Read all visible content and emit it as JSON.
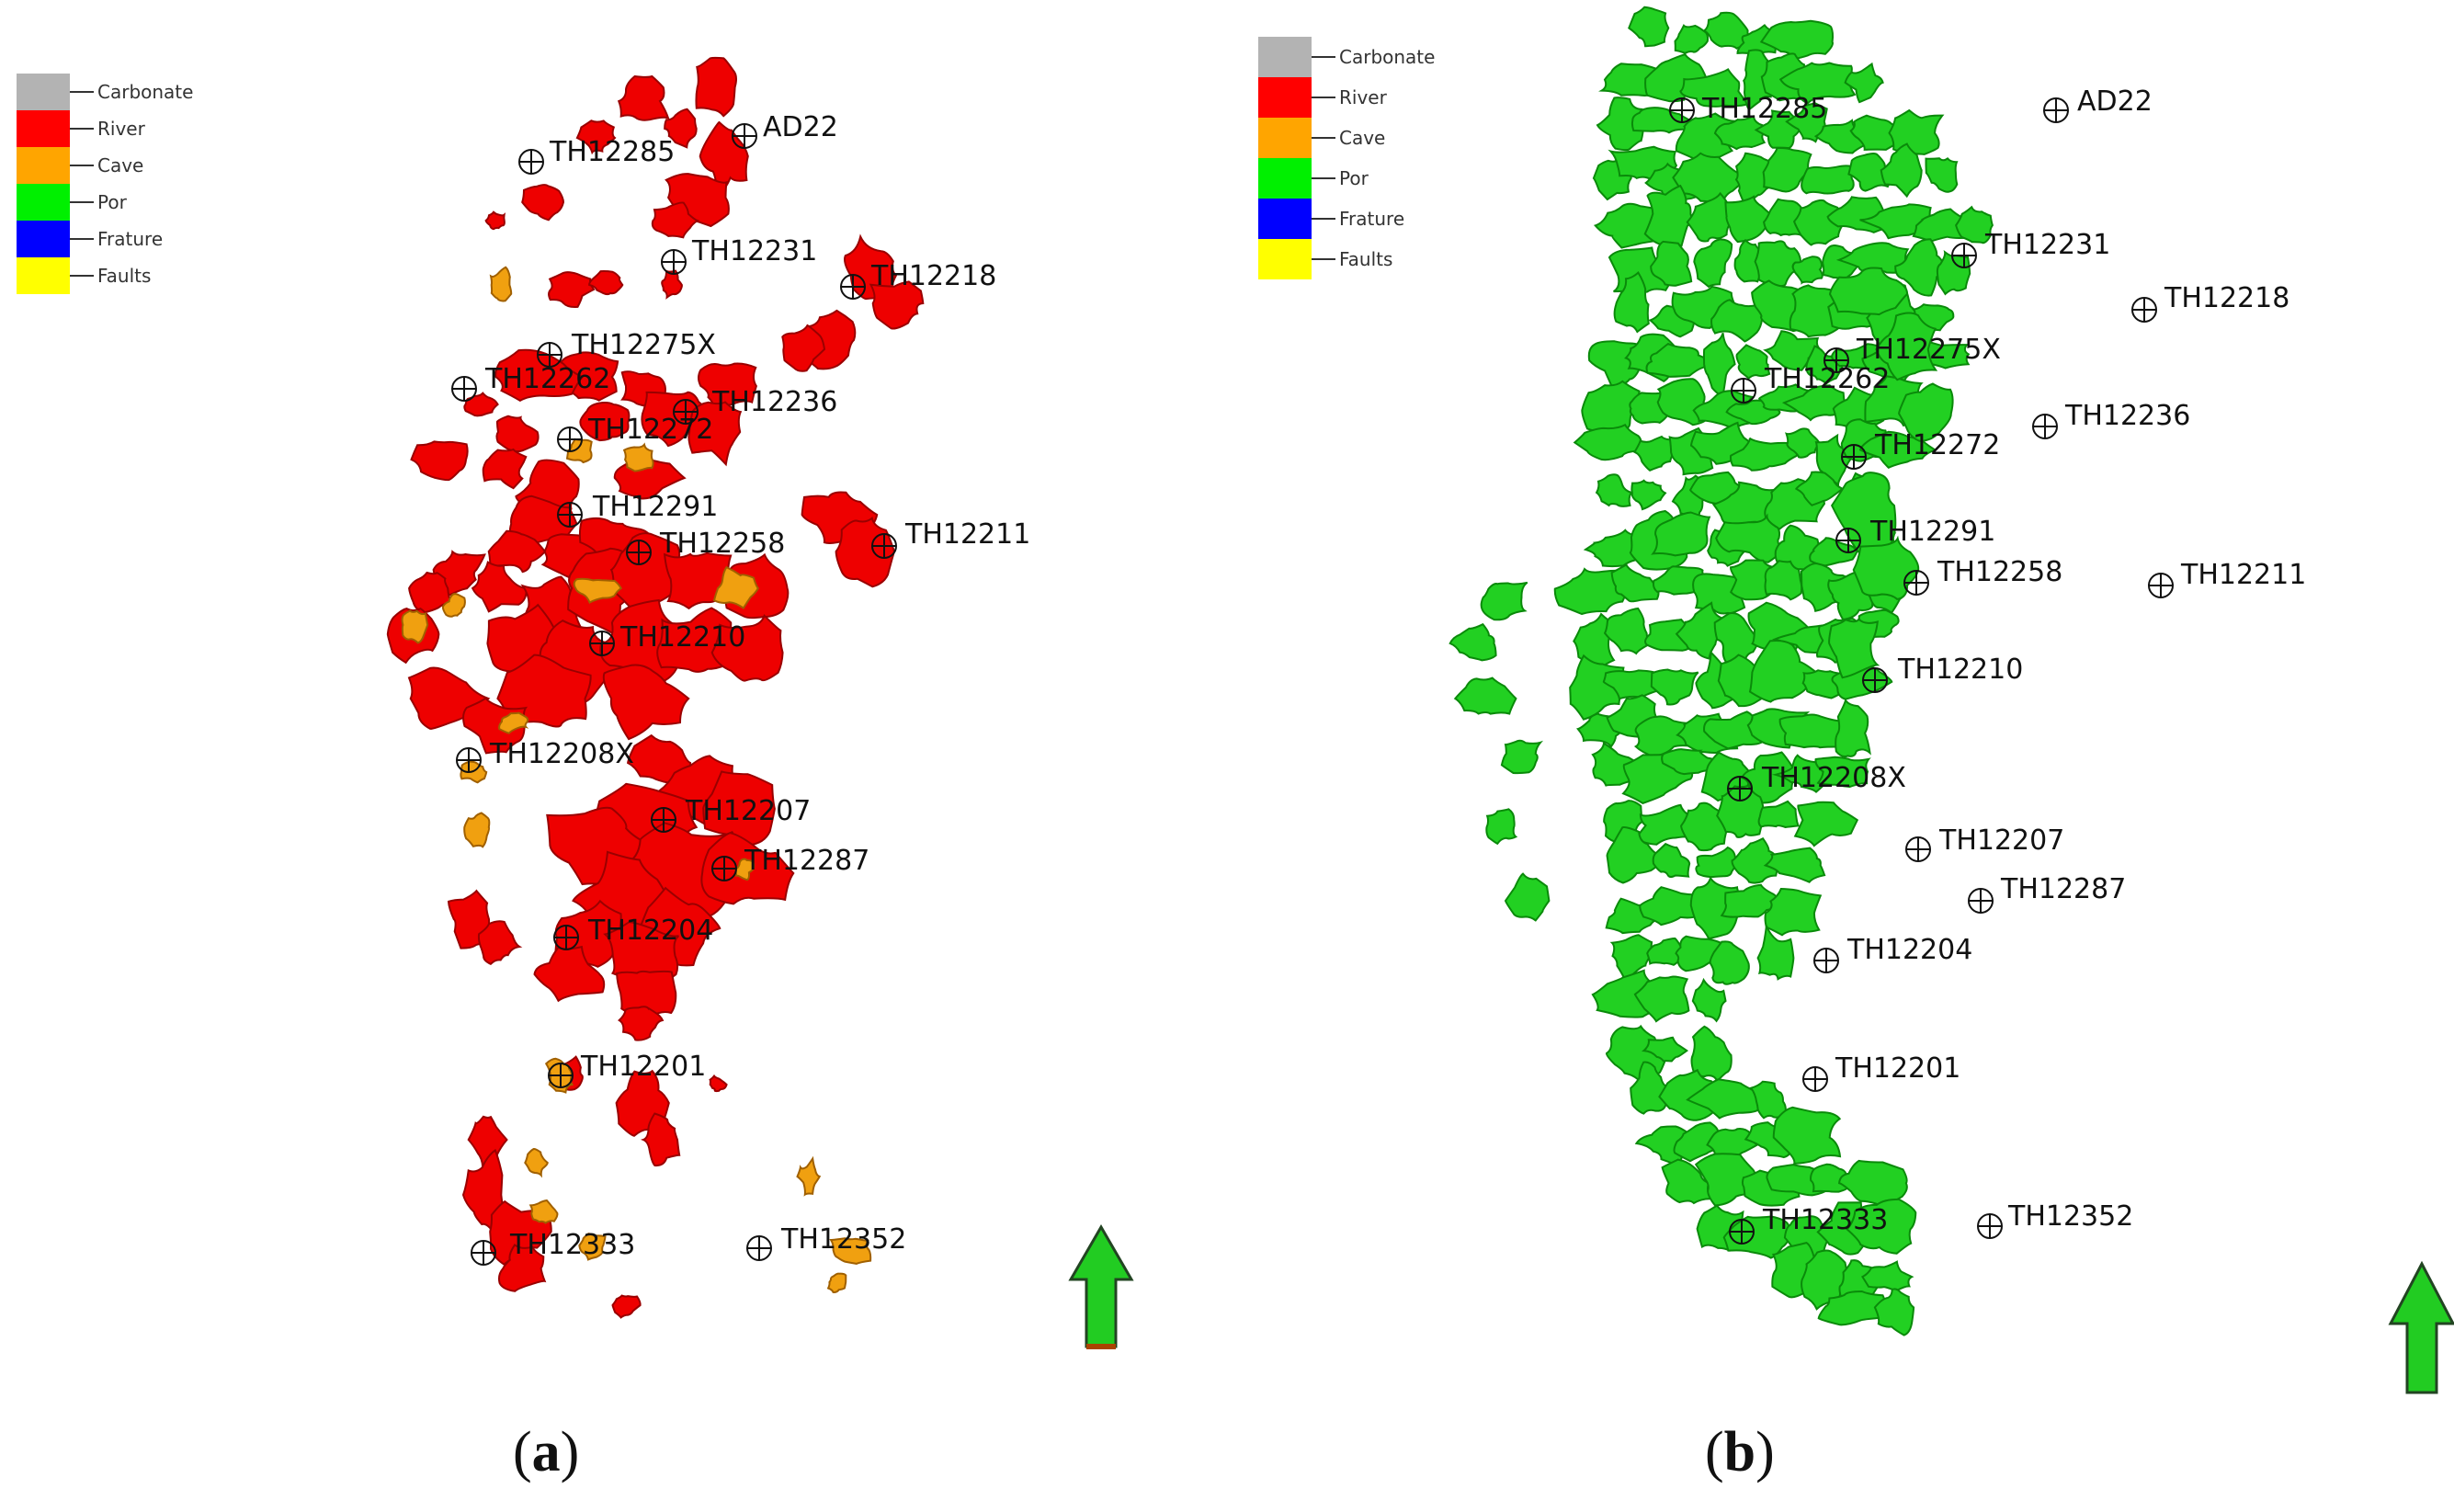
{
  "legend_items": [
    {
      "label": "Carbonate",
      "color": "#b3b3b3"
    },
    {
      "label": "River",
      "color": "#ff0000"
    },
    {
      "label": "Cave",
      "color": "#ffa500"
    },
    {
      "label": "Por",
      "color": "#00f000"
    },
    {
      "label": "Frature",
      "color": "#0000ff"
    },
    {
      "label": "Faults",
      "color": "#ffff00"
    }
  ],
  "panel_a": {
    "caption_letter": "a",
    "legend_labels": [
      "Carbonate",
      "River",
      "Cave",
      "Por",
      "Frature",
      "Faults"
    ],
    "wells": [
      "AD22",
      "TH12285",
      "TH12231",
      "TH12218",
      "TH12275X",
      "TH12262",
      "TH12236",
      "TH12272",
      "TH12291",
      "TH12258",
      "TH12211",
      "TH12210",
      "TH12208X",
      "TH12207",
      "TH12287",
      "TH12204",
      "TH12201",
      "TH12333",
      "TH12352"
    ],
    "north_arrow_icon": "north-arrow-icon"
  },
  "panel_b": {
    "caption_letter": "b",
    "legend_labels": [
      "Carbonate",
      "River",
      "Cave",
      "Por",
      "Frature",
      "Faults"
    ],
    "wells": [
      "TH12285",
      "AD22",
      "TH12231",
      "TH12218",
      "TH12275X",
      "TH12262",
      "TH12236",
      "TH12272",
      "TH12291",
      "TH12258",
      "TH12211",
      "TH12210",
      "TH12208X",
      "TH12207",
      "TH12287",
      "TH12204",
      "TH12201",
      "TH12333",
      "TH12352"
    ],
    "north_arrow_icon": "north-arrow-icon"
  },
  "colors": {
    "river": "#ee0000",
    "river_dark": "#9a0000",
    "cave": "#f0a010",
    "cave_dark": "#a06000",
    "por": "#22d022",
    "por_dark": "#0a8a0a",
    "arrow": "#22cc22"
  }
}
